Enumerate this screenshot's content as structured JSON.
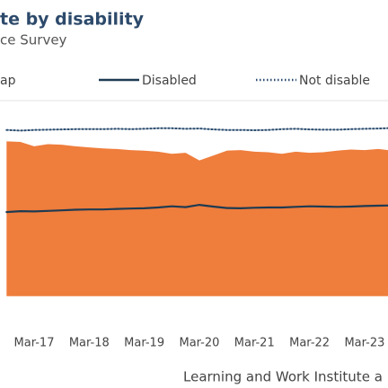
{
  "chart_data": {
    "type": "line",
    "title": "te by disability",
    "subtitle": "ce Survey",
    "source": "Learning and Work Institute a",
    "categories": [
      null,
      null,
      "Mar-17",
      null,
      null,
      null,
      "Mar-18",
      null,
      null,
      null,
      "Mar-19",
      null,
      null,
      null,
      "Mar-20",
      null,
      null,
      null,
      "Mar-21",
      null,
      null,
      null,
      "Mar-22",
      null,
      null,
      null,
      "Mar-23",
      null,
      null,
      null
    ],
    "ylim": [
      13.2,
      94.6
    ],
    "y2lim": [
      -5,
      38
    ],
    "series": [
      {
        "name": "ap",
        "type": "area",
        "axis": "y2",
        "color": "#ef7d3c",
        "values": [
          28.5,
          28.4,
          27.6,
          28.0,
          27.9,
          27.6,
          27.4,
          27.2,
          27.1,
          26.9,
          26.8,
          26.6,
          26.2,
          26.4,
          25.0,
          25.9,
          26.8,
          26.9,
          26.6,
          26.5,
          26.2,
          26.6,
          26.4,
          26.5,
          26.8,
          27.0,
          26.9,
          27.1,
          26.8,
          26.6
        ]
      },
      {
        "name": "Disabled",
        "type": "line",
        "color": "#1e3b52",
        "values": [
          52.0,
          52.3,
          52.2,
          52.4,
          52.6,
          52.8,
          52.9,
          52.9,
          53.1,
          53.2,
          53.3,
          53.6,
          54.0,
          53.7,
          54.5,
          53.9,
          53.4,
          53.3,
          53.5,
          53.6,
          53.6,
          53.8,
          54.0,
          53.9,
          53.8,
          53.9,
          54.1,
          54.2,
          54.3,
          54.4
        ]
      },
      {
        "name": "Not disable",
        "type": "dotted",
        "color": "#2b4d70",
        "values": [
          80.6,
          80.4,
          80.6,
          80.7,
          80.8,
          80.9,
          80.9,
          80.9,
          81.0,
          80.9,
          81.0,
          81.2,
          81.2,
          81.0,
          81.1,
          80.8,
          80.6,
          80.6,
          80.5,
          80.6,
          80.9,
          81.0,
          80.8,
          80.7,
          80.7,
          80.9,
          81.0,
          81.1,
          81.3,
          81.0
        ]
      }
    ]
  }
}
